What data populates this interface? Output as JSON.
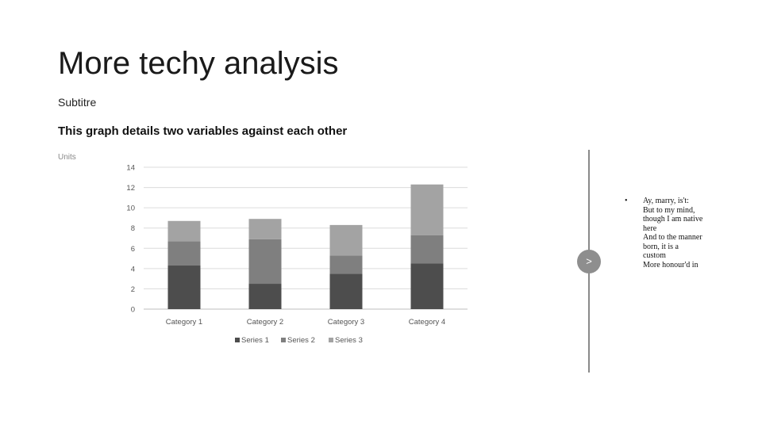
{
  "slide": {
    "title": "More techy analysis",
    "subtitle": "Subtitre",
    "heading": "This graph details two variables against each other"
  },
  "nav": {
    "next_glyph": ">"
  },
  "quote": {
    "bullet": "•",
    "lines": [
      "Ay, marry, is't:",
      "But to my mind,",
      "though I am native",
      "here",
      "And to the manner",
      "born, it is a",
      "custom",
      "More honour'd in"
    ]
  },
  "chart_data": {
    "type": "bar",
    "stacked": true,
    "ylabel": "Units",
    "categories": [
      "Category 1",
      "Category 2",
      "Category 3",
      "Category 4"
    ],
    "series": [
      {
        "name": "Series 1",
        "color": "#4d4d4d",
        "values": [
          4.3,
          2.5,
          3.5,
          4.5
        ]
      },
      {
        "name": "Series 2",
        "color": "#7f7f7f",
        "values": [
          2.4,
          4.4,
          1.8,
          2.8
        ]
      },
      {
        "name": "Series 3",
        "color": "#a3a3a3",
        "values": [
          2.0,
          2.0,
          3.0,
          5.0
        ]
      }
    ],
    "ylim": [
      0,
      14
    ],
    "yticks": [
      0,
      2,
      4,
      6,
      8,
      10,
      12,
      14
    ],
    "grid": true,
    "legend": "bottom"
  }
}
